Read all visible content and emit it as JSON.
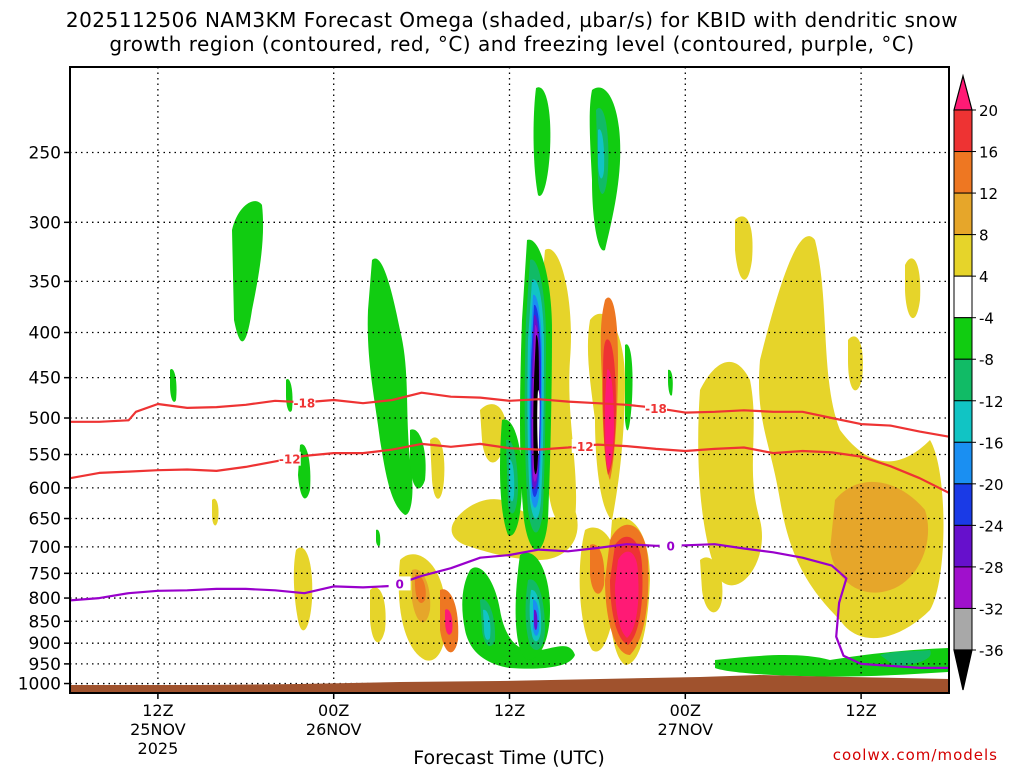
{
  "title": {
    "line1": "2025112506 NAM3KM Forecast Omega (shaded, µbar/s) for KBID with dendritic snow",
    "line2": "growth region (contoured, red, °C) and freezing level (contoured, purple, °C)"
  },
  "chart_data": {
    "type": "time-height cross section",
    "xlabel": "Forecast Time (UTC)",
    "ylabel": "",
    "y_ticks": [
      250,
      300,
      350,
      400,
      450,
      500,
      550,
      600,
      650,
      700,
      750,
      800,
      850,
      900,
      950,
      1000
    ],
    "x_ticks": [
      {
        "hour": 6,
        "line1": "12Z",
        "line2": "25NOV",
        "line3": "2025"
      },
      {
        "hour": 18,
        "line1": "00Z",
        "line2": "26NOV",
        "line3": ""
      },
      {
        "hour": 30,
        "line1": "12Z",
        "line2": "",
        "line3": ""
      },
      {
        "hour": 42,
        "line1": "00Z",
        "line2": "27NOV",
        "line3": ""
      },
      {
        "hour": 54,
        "line1": "12Z",
        "line2": "",
        "line3": ""
      }
    ],
    "x_range_hours": [
      0,
      60
    ],
    "y_range_hpa": [
      200,
      1025
    ],
    "colorbar": {
      "labels": [
        "20",
        "16",
        "12",
        "8",
        "4",
        "-4",
        "-8",
        "-12",
        "-16",
        "-20",
        "-24",
        "-28",
        "-32",
        "-36"
      ],
      "colors": [
        "#ff1a75",
        "#ee3333",
        "#ee7722",
        "#e6a62a",
        "#e6d42a",
        "#ffffff",
        "#11cc11",
        "#11bb66",
        "#11c4c4",
        "#1a8ff2",
        "#1a3ae6",
        "#6610cc",
        "#a010cc",
        "#a8a8a8",
        "#000000"
      ]
    },
    "contours": [
      {
        "name": "-18",
        "color": "#ee3333",
        "label": "-18",
        "x": [
          0,
          2,
          4,
          4.5,
          6,
          8,
          10,
          12,
          14,
          16,
          18,
          20,
          22,
          24,
          26,
          28,
          30,
          32,
          34,
          36,
          38,
          40,
          42,
          44,
          46,
          48,
          50,
          52,
          54,
          56,
          58,
          60
        ],
        "p": [
          505,
          505,
          503,
          492,
          482,
          487,
          486,
          483,
          478,
          480,
          477,
          481,
          477,
          468,
          473,
          474,
          478,
          476,
          479,
          481,
          483,
          487,
          493,
          492,
          490,
          492,
          492,
          500,
          508,
          510,
          518,
          525
        ]
      },
      {
        "name": "-12",
        "color": "#ee3333",
        "label": "-12",
        "x": [
          0,
          2,
          4,
          6,
          8,
          10,
          12,
          14,
          16,
          18,
          20,
          22,
          24,
          26,
          28,
          30,
          32,
          34,
          36,
          38,
          40,
          42,
          44,
          46,
          48,
          50,
          52,
          54,
          56,
          58,
          60
        ],
        "p": [
          585,
          577,
          575,
          573,
          572,
          574,
          568,
          560,
          552,
          548,
          548,
          543,
          535,
          539,
          535,
          541,
          543,
          540,
          536,
          538,
          542,
          545,
          542,
          540,
          548,
          545,
          547,
          553,
          567,
          585,
          608
        ]
      },
      {
        "name": "0",
        "color": "#9900cc",
        "label": "0",
        "x": [
          0,
          2,
          4,
          6,
          8,
          10,
          12,
          14,
          16,
          18,
          20,
          22,
          24,
          26,
          28,
          30,
          32,
          34,
          36,
          38,
          40,
          42,
          44,
          46,
          48,
          50,
          52,
          53,
          52.5,
          52.3,
          52.8,
          54,
          56,
          58,
          60
        ],
        "p": [
          805,
          800,
          790,
          785,
          784,
          781,
          781,
          784,
          790,
          776,
          778,
          775,
          755,
          740,
          720,
          715,
          705,
          708,
          702,
          695,
          698,
          697,
          695,
          703,
          710,
          720,
          735,
          760,
          810,
          885,
          930,
          950,
          955,
          960,
          960
        ]
      }
    ],
    "contour_labels": [
      "-18",
      "-18",
      "-12",
      "-12",
      "0",
      "0"
    ]
  },
  "credit": "coolwx.com/models"
}
